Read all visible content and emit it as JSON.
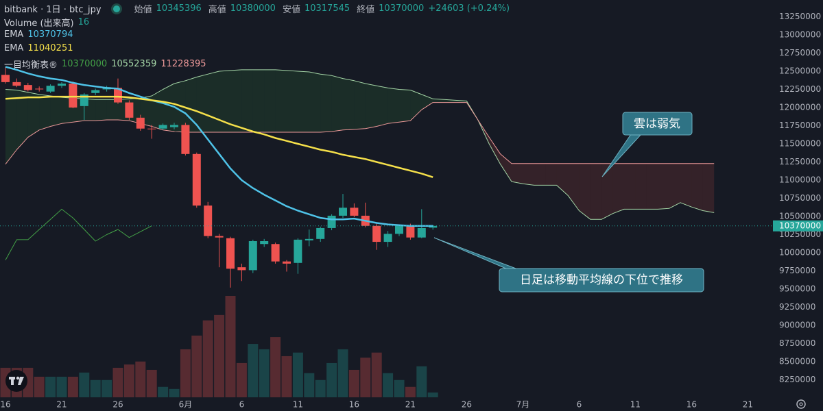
{
  "chart_data": {
    "type": "candlestick",
    "title": "bitbank · 1日 · btc_jpy",
    "ohlc_labels": [
      "始値",
      "高値",
      "安値",
      "終値"
    ],
    "change": "+24603 (+0.24%)",
    "categories": [
      "16",
      null,
      null,
      null,
      null,
      "21",
      null,
      null,
      null,
      null,
      "26",
      null,
      null,
      null,
      null,
      null,
      "6月",
      null,
      null,
      null,
      null,
      "6",
      null,
      null,
      null,
      null,
      "11",
      null,
      null,
      null,
      null,
      "16",
      null,
      null,
      null,
      null,
      "21",
      null,
      null,
      null,
      null,
      "26",
      null,
      null,
      null,
      null,
      "7月",
      null,
      null,
      null,
      null,
      "6",
      null,
      null,
      null,
      null,
      "11",
      null,
      null,
      null,
      null,
      "16",
      null,
      null,
      null,
      null,
      "21",
      null
    ],
    "open": [
      12450000,
      12350000,
      12310000,
      12260000,
      12220000,
      12300000,
      12330000,
      12020000,
      12200000,
      12250000,
      12270000,
      12070000,
      11860000,
      11710000,
      11710000,
      11730000,
      11760000,
      11360000,
      10650000,
      10230000,
      10200000,
      9800000,
      9760000,
      10120000,
      10120000,
      9880000,
      9860000,
      10170000,
      10190000,
      10340000,
      10510000,
      10620000,
      10510000,
      10370000,
      10150000,
      10260000,
      10370000,
      10210000,
      10345396,
      null,
      null,
      null,
      null,
      null,
      null,
      null,
      null,
      null,
      null,
      null,
      null,
      null,
      null,
      null,
      null,
      null,
      null,
      null,
      null,
      null,
      null,
      null,
      null,
      null,
      null,
      null,
      null,
      null
    ],
    "high": [
      12560000,
      12400000,
      12340000,
      12290000,
      12320000,
      12350000,
      12360000,
      12200000,
      12260000,
      12300000,
      12400000,
      12100000,
      11900000,
      11760000,
      11780000,
      11790000,
      11790000,
      11380000,
      10700000,
      10260000,
      10220000,
      9850000,
      10180000,
      10190000,
      10140000,
      9900000,
      10200000,
      10320000,
      10360000,
      10530000,
      10810000,
      10680000,
      10690000,
      10400000,
      10300000,
      10390000,
      10400000,
      10600000,
      10380000,
      null,
      null,
      null,
      null,
      null,
      null,
      null,
      null,
      null,
      null,
      null,
      null,
      null,
      null,
      null,
      null,
      null,
      null,
      null,
      null,
      null,
      null,
      null,
      null,
      null,
      null,
      null,
      null,
      null
    ],
    "low": [
      12330000,
      12280000,
      12220000,
      12220000,
      12200000,
      12270000,
      11990000,
      11830000,
      12170000,
      12220000,
      12050000,
      11830000,
      11680000,
      11570000,
      11690000,
      11700000,
      11340000,
      10620000,
      10200000,
      9800000,
      9520000,
      9610000,
      9720000,
      10080000,
      9850000,
      9740000,
      9710000,
      10090000,
      10150000,
      10310000,
      10480000,
      10490000,
      10350000,
      10040000,
      10080000,
      10230000,
      10180000,
      10200000,
      10317545,
      null,
      null,
      null,
      null,
      null,
      null,
      null,
      null,
      null,
      null,
      null,
      null,
      null,
      null,
      null,
      null,
      null,
      null,
      null,
      null,
      null,
      null,
      null,
      null,
      null,
      null,
      null,
      null,
      null
    ],
    "close": [
      12350000,
      12300000,
      12240000,
      12250000,
      12300000,
      12330000,
      12000000,
      12180000,
      12240000,
      12280000,
      12070000,
      11860000,
      11710000,
      11700000,
      11760000,
      11760000,
      11360000,
      10650000,
      10230000,
      10210000,
      9780000,
      9760000,
      10160000,
      10160000,
      9880000,
      9850000,
      10180000,
      10190000,
      10340000,
      10510000,
      10620000,
      10510000,
      10370000,
      10150000,
      10260000,
      10370000,
      10210000,
      10340000,
      10370000,
      null,
      null,
      null,
      null,
      null,
      null,
      null,
      null,
      null,
      null,
      null,
      null,
      null,
      null,
      null,
      null,
      null,
      null,
      null,
      null,
      null,
      null,
      null,
      null,
      null,
      null,
      null,
      null,
      null
    ],
    "up_color": "#26a69a",
    "down_color": "#ef5350",
    "volume": {
      "name": "Volume (出来高)",
      "values": [
        99,
        99,
        99,
        69,
        69,
        69,
        69,
        83,
        58,
        58,
        99,
        110,
        120,
        92,
        35,
        28,
        161,
        207,
        258,
        276,
        340,
        115,
        179,
        161,
        202,
        138,
        150,
        81,
        58,
        115,
        161,
        92,
        133,
        150,
        81,
        58,
        35,
        104,
        16,
        null,
        null,
        null,
        null,
        null,
        null,
        null,
        null,
        null,
        null,
        null,
        null,
        null,
        null,
        null,
        null,
        null,
        null,
        null,
        null,
        null,
        null,
        null,
        null,
        null,
        null,
        null,
        null,
        null
      ]
    },
    "series": [
      {
        "name": "EMA",
        "color": "#4fc3e8",
        "values": [
          12560000,
          12520000,
          12470000,
          12430000,
          12400000,
          12380000,
          12340000,
          12310000,
          12290000,
          12270000,
          12260000,
          12200000,
          12150000,
          12100000,
          12060000,
          12010000,
          11920000,
          11760000,
          11560000,
          11360000,
          11160000,
          11000000,
          10890000,
          10800000,
          10720000,
          10640000,
          10580000,
          10530000,
          10480000,
          10460000,
          10460000,
          10470000,
          10440000,
          10410000,
          10390000,
          10380000,
          10370000,
          10370000,
          10370794,
          null,
          null,
          null,
          null,
          null,
          null,
          null,
          null,
          null,
          null,
          null,
          null,
          null,
          null,
          null,
          null,
          null,
          null,
          null,
          null,
          null,
          null,
          null,
          null,
          null,
          null,
          null,
          null,
          null
        ]
      },
      {
        "name": "EMA",
        "color": "#f5e04a",
        "values": [
          12120000,
          12130000,
          12140000,
          12140000,
          12150000,
          12150000,
          12150000,
          12150000,
          12150000,
          12150000,
          12150000,
          12140000,
          12120000,
          12100000,
          12080000,
          12050000,
          12000000,
          11950000,
          11890000,
          11830000,
          11770000,
          11720000,
          11670000,
          11630000,
          11580000,
          11540000,
          11500000,
          11460000,
          11420000,
          11390000,
          11350000,
          11320000,
          11290000,
          11250000,
          11210000,
          11170000,
          11130000,
          11090000,
          11040251,
          null,
          null,
          null,
          null,
          null,
          null,
          null,
          null,
          null,
          null,
          null,
          null,
          null,
          null,
          null,
          null,
          null,
          null,
          null,
          null,
          null,
          null,
          null,
          null,
          null,
          null,
          null,
          null,
          null
        ]
      }
    ],
    "ichimoku": {
      "name": "一目均衡表®",
      "lagging_span": {
        "color": "#43a047",
        "values": [
          9900000,
          10180000,
          10180000,
          10320000,
          10460000,
          10600000,
          10480000,
          10320000,
          10160000,
          10250000,
          10320000,
          10210000,
          10290000,
          10370000,
          null,
          null,
          null,
          null,
          null,
          null,
          null,
          null,
          null,
          null,
          null,
          null,
          null,
          null,
          null,
          null,
          null,
          null,
          null,
          null,
          null,
          null,
          null,
          null,
          null,
          null,
          null,
          null,
          null,
          null,
          null,
          null,
          null,
          null,
          null,
          null,
          null,
          null,
          null,
          null,
          null,
          null,
          null,
          null,
          null,
          null,
          null,
          null,
          null,
          null,
          null,
          null,
          null,
          null
        ]
      },
      "leading_span_a": {
        "color": "#a5d6a7",
        "values": [
          12250000,
          12240000,
          12210000,
          12180000,
          12160000,
          12140000,
          12130000,
          12120000,
          12110000,
          12110000,
          12110000,
          12120000,
          12130000,
          12160000,
          12250000,
          12330000,
          12370000,
          12420000,
          12460000,
          12500000,
          12510000,
          12520000,
          12520000,
          12520000,
          12520000,
          12510000,
          12500000,
          12490000,
          12460000,
          12440000,
          12400000,
          12370000,
          12330000,
          12300000,
          12270000,
          12250000,
          12240000,
          12180000,
          12120000,
          12110000,
          12100000,
          12090000,
          11830000,
          11500000,
          11220000,
          10980000,
          10950000,
          10930000,
          10930000,
          10930000,
          10790000,
          10580000,
          10460000,
          10460000,
          10540000,
          10600000,
          10600000,
          10600000,
          10600000,
          10610000,
          10690000,
          10630000,
          10580000,
          10552359,
          null,
          null,
          null,
          null
        ]
      },
      "leading_span_b": {
        "color": "#ef9a9a",
        "values": [
          11220000,
          11420000,
          11590000,
          11690000,
          11740000,
          11780000,
          11800000,
          11820000,
          11820000,
          11830000,
          11830000,
          11820000,
          11780000,
          11740000,
          11690000,
          11670000,
          11660000,
          11660000,
          11660000,
          11660000,
          11660000,
          11660000,
          11660000,
          11660000,
          11660000,
          11660000,
          11660000,
          11660000,
          11660000,
          11670000,
          11690000,
          11700000,
          11710000,
          11740000,
          11780000,
          11800000,
          11820000,
          11970000,
          12070000,
          12070000,
          12070000,
          12070000,
          11830000,
          11590000,
          11360000,
          11228395,
          11228395,
          11228395,
          11228395,
          11228395,
          11228395,
          11228395,
          11228395,
          11228395,
          11228395,
          11228395,
          11228395,
          11228395,
          11228395,
          11228395,
          11228395,
          11228395,
          11228395,
          11228395,
          null,
          null,
          null,
          null
        ]
      },
      "cloud_colors": {
        "bullish": "rgba(67,160,71,0.14)",
        "bearish": "rgba(239,83,80,0.14)"
      }
    },
    "ylim": [
      8009000,
      13481000
    ],
    "yticks": [
      8250000,
      8500000,
      8750000,
      9000000,
      9250000,
      9500000,
      9750000,
      10000000,
      10250000,
      10500000,
      10750000,
      11000000,
      11250000,
      11500000,
      11750000,
      12000000,
      12250000,
      12500000,
      12750000,
      13000000,
      13250000
    ],
    "grid": false,
    "annotations": [
      {
        "text": "雲は弱気"
      },
      {
        "text": "日足は移動平均線の下位で推移"
      }
    ]
  }
}
